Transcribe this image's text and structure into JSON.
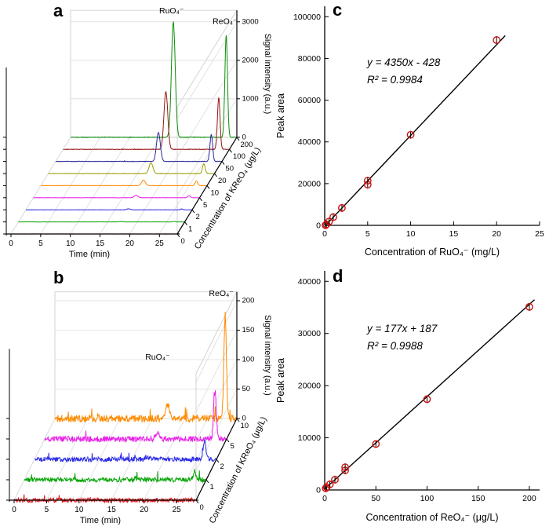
{
  "figure": {
    "letters": {
      "a": "a",
      "b": "b",
      "c": "c",
      "d": "d"
    }
  },
  "chart_data": [
    {
      "id": "a",
      "type": "line",
      "variant": "3d-waterfall-chromatograms",
      "xlabel": "Time (min)",
      "x_range": [
        0,
        28
      ],
      "x_ticks": [
        0,
        5,
        10,
        15,
        20,
        25
      ],
      "value_label": "Signal intensity (a.u.)",
      "value_ticks": [
        0,
        1000,
        2000,
        3000
      ],
      "value_max": 3300,
      "depth_label": "Concentration of KReO₄ (μg/L)",
      "peaks": {
        "ru_time": 17.3,
        "ru_sigma": 0.32,
        "re_time": 26.2,
        "re_sigma": 0.22
      },
      "peak_labels": [
        {
          "text": "RuO₄⁻",
          "time": 17.0,
          "value": 3220
        },
        {
          "text": "ReO₄⁻",
          "time": 26.0,
          "value": 2950
        }
      ],
      "traces": [
        {
          "conc": "0",
          "color": "#e31a1a",
          "ru": 0,
          "re": 0,
          "noise": 3
        },
        {
          "conc": "1",
          "color": "#0aa50a",
          "ru": 12,
          "re": 10,
          "noise": 3
        },
        {
          "conc": "2",
          "color": "#2b2be6",
          "ru": 25,
          "re": 22,
          "noise": 3
        },
        {
          "conc": "5",
          "color": "#e822e8",
          "ru": 60,
          "re": 55,
          "noise": 4
        },
        {
          "conc": "10",
          "color": "#ff8c00",
          "ru": 140,
          "re": 120,
          "noise": 4
        },
        {
          "conc": "20",
          "color": "#9b9b00",
          "ru": 280,
          "re": 255,
          "noise": 5
        },
        {
          "conc": "50",
          "color": "#2a2a9b",
          "ru": 750,
          "re": 700,
          "noise": 6
        },
        {
          "conc": "100",
          "color": "#991414",
          "ru": 1500,
          "re": 1350,
          "noise": 7
        },
        {
          "conc": "200",
          "color": "#0a8f0a",
          "ru": 3000,
          "re": 2650,
          "noise": 8
        }
      ]
    },
    {
      "id": "b",
      "type": "line",
      "variant": "3d-waterfall-chromatograms",
      "xlabel": "Time (min)",
      "x_range": [
        0,
        28
      ],
      "x_ticks": [
        0,
        5,
        10,
        15,
        20,
        25
      ],
      "value_label": "Signal intensity (a.u.)",
      "value_ticks": [
        0,
        50,
        100,
        150,
        200
      ],
      "value_max": 215,
      "depth_label": "Concentration of KReO₄ (μg/L)",
      "peaks": {
        "ru_time": 17.3,
        "ru_sigma": 0.3,
        "re_time": 26.2,
        "re_sigma": 0.2
      },
      "peak_labels": [
        {
          "text": "RuO₄⁻",
          "time": 15.8,
          "value": 100
        },
        {
          "text": "ReO₄⁻",
          "time": 25.6,
          "value": 208
        }
      ],
      "traces": [
        {
          "conc": "0",
          "color": "#e31a1a",
          "ru": 0,
          "re": 0,
          "noise": 4
        },
        {
          "conc": "1",
          "color": "#0aa50a",
          "ru": 2,
          "re": 15,
          "noise": 4
        },
        {
          "conc": "2",
          "color": "#2b2be6",
          "ru": 4,
          "re": 33,
          "noise": 4
        },
        {
          "conc": "5",
          "color": "#e822e8",
          "ru": 9,
          "re": 82,
          "noise": 5
        },
        {
          "conc": "10",
          "color": "#ff8c00",
          "ru": 25,
          "re": 172,
          "noise": 6
        }
      ]
    },
    {
      "id": "c",
      "type": "scatter",
      "xlabel": "Concentration of RuO₄⁻ (mg/L)",
      "ylabel": "Peak area",
      "x_range": [
        0,
        25
      ],
      "x_ticks": [
        0,
        5,
        10,
        15,
        20,
        25
      ],
      "y_range": [
        0,
        105000
      ],
      "y_ticks": [
        0,
        20000,
        40000,
        60000,
        80000,
        100000
      ],
      "equation": "y = 4350x - 428",
      "r_squared": "R² = 0.9984",
      "fit": {
        "slope": 4350,
        "intercept": -428,
        "x_from": 0.2,
        "x_to": 21
      },
      "points": [
        {
          "x": 0.1,
          "y": 80
        },
        {
          "x": 0.2,
          "y": 450
        },
        {
          "x": 0.5,
          "y": 1800
        },
        {
          "x": 1,
          "y": 3950
        },
        {
          "x": 2,
          "y": 8350
        },
        {
          "x": 5,
          "y": 19500
        },
        {
          "x": 5,
          "y": 21400
        },
        {
          "x": 10,
          "y": 43400
        },
        {
          "x": 20,
          "y": 88800
        }
      ],
      "point_color": "#cc1111",
      "line_color": "#000000"
    },
    {
      "id": "d",
      "type": "scatter",
      "xlabel": "Concentration of ReO₄⁻ (μg/L)",
      "ylabel": "Peak area",
      "x_range": [
        0,
        210
      ],
      "x_ticks": [
        0,
        50,
        100,
        150,
        200
      ],
      "y_range": [
        0,
        42000
      ],
      "y_ticks": [
        0,
        10000,
        20000,
        30000,
        40000
      ],
      "equation": "y = 177x + 187",
      "r_squared": "R² = 0.9988",
      "fit": {
        "slope": 177,
        "intercept": 187,
        "x_from": 0,
        "x_to": 205
      },
      "points": [
        {
          "x": 1,
          "y": 330
        },
        {
          "x": 2,
          "y": 540
        },
        {
          "x": 5,
          "y": 1060
        },
        {
          "x": 10,
          "y": 1980
        },
        {
          "x": 20,
          "y": 3750
        },
        {
          "x": 20,
          "y": 4350
        },
        {
          "x": 50,
          "y": 8800
        },
        {
          "x": 100,
          "y": 17400
        },
        {
          "x": 200,
          "y": 35100
        }
      ],
      "point_color": "#cc1111",
      "line_color": "#000000"
    }
  ]
}
